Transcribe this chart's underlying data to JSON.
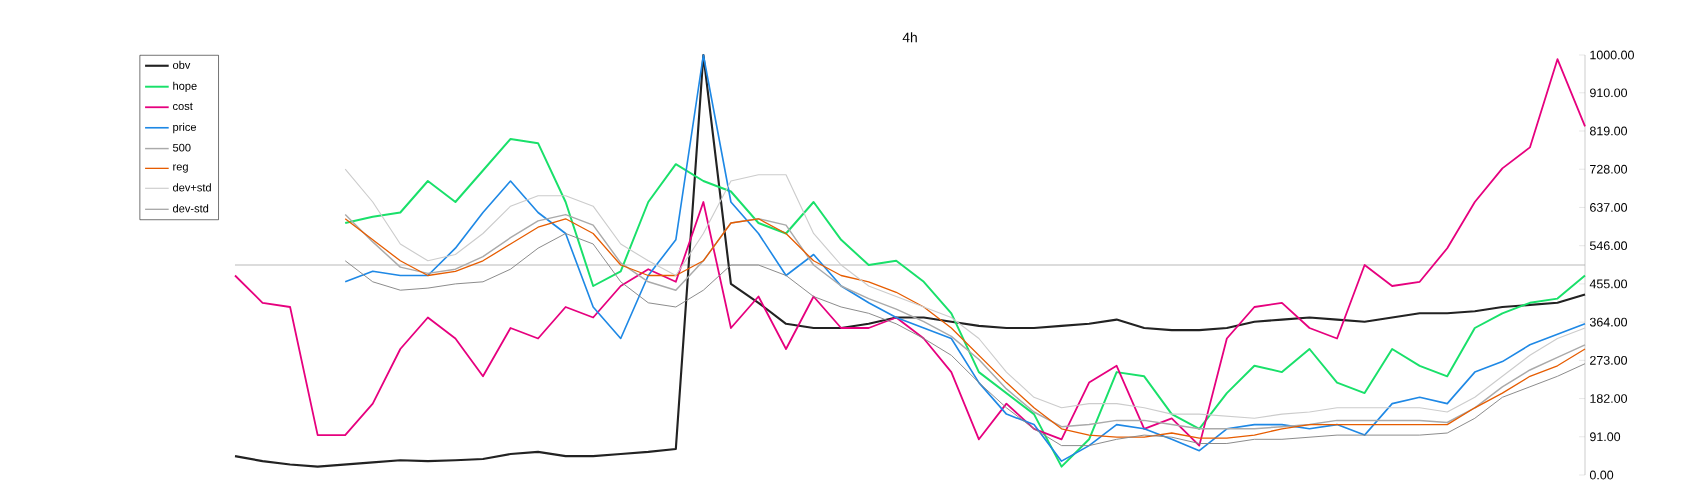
{
  "chart_data": {
    "type": "line",
    "title": "4h",
    "categories": [
      null,
      null,
      null,
      null,
      null,
      null,
      null,
      null,
      null,
      null,
      null,
      null,
      null,
      null,
      null,
      null,
      null,
      null,
      null,
      null,
      null,
      null,
      null,
      null,
      null,
      null,
      null,
      null,
      null,
      null,
      null,
      null,
      null,
      null,
      null,
      null,
      null,
      null,
      null,
      null,
      null,
      null,
      null,
      null,
      null,
      null,
      null,
      null,
      null,
      null
    ],
    "series": [
      {
        "name": "obv",
        "color": "#222222",
        "values": [
          45,
          33,
          25,
          20,
          25,
          30,
          35,
          33,
          35,
          38,
          50,
          55,
          45,
          45,
          50,
          55,
          62,
          1000,
          455,
          410,
          360,
          350,
          350,
          360,
          375,
          375,
          365,
          355,
          350,
          350,
          355,
          360,
          370,
          350,
          345,
          345,
          350,
          365,
          370,
          375,
          370,
          365,
          375,
          385,
          385,
          390,
          400,
          405,
          410,
          430
        ]
      },
      {
        "name": "hope",
        "color": "#19e06a",
        "values": [
          null,
          null,
          null,
          null,
          600,
          615,
          625,
          700,
          650,
          725,
          800,
          790,
          650,
          450,
          485,
          650,
          740,
          700,
          675,
          600,
          575,
          650,
          560,
          500,
          510,
          460,
          385,
          245,
          195,
          145,
          20,
          85,
          245,
          235,
          145,
          110,
          195,
          260,
          245,
          300,
          220,
          195,
          300,
          260,
          235,
          350,
          385,
          410,
          420,
          475
        ]
      },
      {
        "name": "cost",
        "color": "#e6007e",
        "values": [
          475,
          410,
          400,
          95,
          95,
          170,
          300,
          375,
          325,
          235,
          350,
          325,
          400,
          375,
          450,
          490,
          460,
          650,
          350,
          425,
          300,
          425,
          350,
          350,
          375,
          325,
          245,
          85,
          170,
          110,
          85,
          220,
          260,
          110,
          135,
          70,
          325,
          400,
          410,
          350,
          325,
          500,
          450,
          460,
          540,
          650,
          730,
          780,
          990,
          830
        ]
      },
      {
        "name": "price",
        "color": "#1e88e5",
        "values": [
          null,
          null,
          null,
          null,
          460,
          485,
          475,
          475,
          540,
          625,
          700,
          625,
          575,
          400,
          325,
          475,
          560,
          1000,
          650,
          575,
          475,
          525,
          450,
          410,
          375,
          350,
          325,
          220,
          145,
          120,
          33,
          70,
          120,
          110,
          85,
          58,
          110,
          120,
          120,
          110,
          120,
          95,
          170,
          185,
          170,
          245,
          270,
          310,
          335,
          360
        ]
      },
      {
        "name": "500",
        "color": "#aaaaaa",
        "values": [
          null,
          null,
          null,
          null,
          620,
          555,
          495,
          480,
          490,
          520,
          565,
          605,
          620,
          595,
          505,
          460,
          440,
          510,
          600,
          610,
          595,
          500,
          450,
          420,
          395,
          365,
          330,
          275,
          205,
          150,
          115,
          120,
          130,
          130,
          120,
          110,
          110,
          110,
          115,
          120,
          130,
          130,
          130,
          130,
          125,
          160,
          210,
          250,
          280,
          310
        ]
      },
      {
        "name": "reg",
        "color": "#e65c00",
        "values": [
          null,
          null,
          null,
          null,
          610,
          560,
          510,
          475,
          485,
          510,
          550,
          590,
          610,
          575,
          500,
          475,
          475,
          510,
          600,
          610,
          575,
          510,
          475,
          460,
          435,
          400,
          350,
          285,
          220,
          160,
          110,
          95,
          90,
          90,
          100,
          88,
          88,
          95,
          110,
          120,
          120,
          120,
          120,
          120,
          120,
          160,
          195,
          235,
          260,
          300
        ]
      },
      {
        "name": "dev+std",
        "color": "#cccccc",
        "values": [
          null,
          null,
          null,
          null,
          728,
          650,
          550,
          510,
          525,
          575,
          640,
          665,
          665,
          640,
          550,
          510,
          475,
          575,
          700,
          715,
          715,
          575,
          500,
          450,
          425,
          400,
          375,
          325,
          245,
          185,
          160,
          170,
          170,
          160,
          145,
          145,
          140,
          135,
          145,
          150,
          160,
          160,
          160,
          160,
          150,
          185,
          235,
          285,
          325,
          350
        ]
      },
      {
        "name": "dev-std",
        "color": "#888888",
        "values": [
          null,
          null,
          null,
          null,
          510,
          460,
          440,
          445,
          455,
          460,
          490,
          540,
          575,
          550,
          460,
          410,
          400,
          440,
          500,
          500,
          475,
          425,
          400,
          385,
          360,
          325,
          285,
          220,
          160,
          110,
          70,
          70,
          85,
          95,
          90,
          75,
          75,
          85,
          85,
          90,
          95,
          95,
          95,
          95,
          100,
          135,
          185,
          210,
          235,
          265
        ]
      }
    ],
    "ylim": [
      0,
      1000
    ],
    "yticks": [
      {
        "value": 0,
        "label": "0.00"
      },
      {
        "value": 91,
        "label": "91.00"
      },
      {
        "value": 182,
        "label": "182.00"
      },
      {
        "value": 273,
        "label": "273.00"
      },
      {
        "value": 364,
        "label": "364.00"
      },
      {
        "value": 455,
        "label": "455.00"
      },
      {
        "value": 546,
        "label": "546.00"
      },
      {
        "value": 637,
        "label": "637.00"
      },
      {
        "value": 728,
        "label": "728.00"
      },
      {
        "value": 819,
        "label": "819.00"
      },
      {
        "value": 910,
        "label": "910.00"
      },
      {
        "value": 1000,
        "label": "1000.00"
      }
    ],
    "ref_lines": [
      {
        "axis": "y",
        "value": 500,
        "color": "#aaaaaa"
      }
    ],
    "legend": "left",
    "marker": "none",
    "line_style": "solid"
  }
}
